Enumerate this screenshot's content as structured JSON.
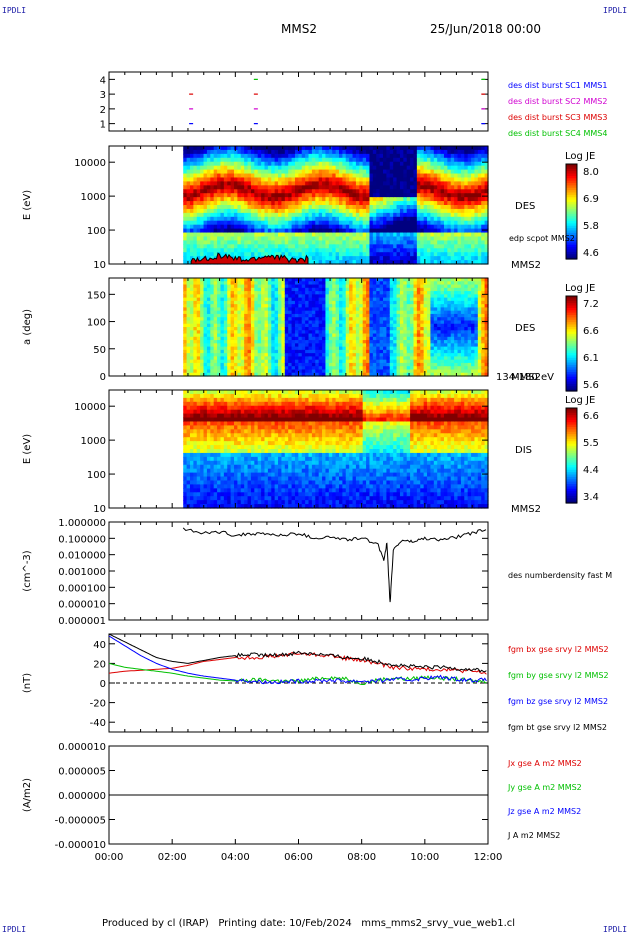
{
  "corners": {
    "tl": "IPDLI",
    "tr": "IPDLI",
    "bl": "IPDLI",
    "br": "IPDLI"
  },
  "header": {
    "title": "MMS2",
    "date": "25/Jun/2018 00:00"
  },
  "footer": {
    "text": "Produced by cl (IRAP)   Printing date: 10/Feb/2024   mms_mms2_srvy_vue_web1.cl"
  },
  "colors": {
    "mms1": "#0000ff",
    "mms2": "#d000d0",
    "mms3": "#dd0000",
    "mms4": "#00c000",
    "bx": "#dd0000",
    "by": "#00c000",
    "bz": "#0000ff",
    "bt": "#000000"
  },
  "chart_data": [
    {
      "type": "scatter",
      "panel": "availability",
      "ylim": [
        0.5,
        4.5
      ],
      "yticks": [
        "1",
        "2",
        "3",
        "4"
      ],
      "legend": [
        {
          "name": "des dist burst SC1 MMS1",
          "color": "#0000ff"
        },
        {
          "name": "des dist burst SC2 MMS2",
          "color": "#d000d0"
        },
        {
          "name": "des dist burst SC3 MMS3",
          "color": "#dd0000"
        },
        {
          "name": "des dist burst SC4 MMS4",
          "color": "#00c000"
        }
      ],
      "marks": [
        {
          "t": 2.6,
          "sc": 1
        },
        {
          "t": 2.6,
          "sc": 2
        },
        {
          "t": 2.6,
          "sc": 3
        },
        {
          "t": 4.65,
          "sc": 1
        },
        {
          "t": 4.65,
          "sc": 2
        },
        {
          "t": 4.65,
          "sc": 3
        },
        {
          "t": 4.65,
          "sc": 4
        },
        {
          "t": 11.85,
          "sc": 1
        },
        {
          "t": 11.85,
          "sc": 2
        },
        {
          "t": 11.85,
          "sc": 3
        },
        {
          "t": 11.85,
          "sc": 4
        }
      ]
    },
    {
      "type": "heatmap",
      "panel": "des-energy",
      "ylabel": "E (eV)",
      "yscale": "log",
      "ylim": [
        10,
        30000
      ],
      "yticks": [
        "10",
        "100",
        "1000",
        "10000"
      ],
      "data_start": 2.35,
      "label": "DES",
      "sc_label": "MMS2",
      "overlay_label": "edp scpot MMS2",
      "colorbar": {
        "title": "Log JE",
        "ticks": [
          "8.0",
          "6.9",
          "5.8",
          "4.6"
        ]
      }
    },
    {
      "type": "heatmap",
      "panel": "des-pitch",
      "ylabel": "a (deg)",
      "ylim": [
        0,
        180
      ],
      "yticks": [
        "0",
        "50",
        "100",
        "150"
      ],
      "data_start": 2.35,
      "label": "DES",
      "sc_label": "MMS2",
      "energy_label": "134-180 eV",
      "colorbar": {
        "title": "Log JE",
        "ticks": [
          "7.2",
          "6.6",
          "6.1",
          "5.6"
        ]
      }
    },
    {
      "type": "heatmap",
      "panel": "dis-energy",
      "ylabel": "E (eV)",
      "yscale": "log",
      "ylim": [
        10,
        30000
      ],
      "yticks": [
        "10",
        "100",
        "1000",
        "10000"
      ],
      "data_start": 2.35,
      "label": "DIS",
      "sc_label": "MMS2",
      "colorbar": {
        "title": "Log JE",
        "ticks": [
          "6.6",
          "5.5",
          "4.4",
          "3.4"
        ]
      }
    },
    {
      "type": "line",
      "panel": "density",
      "ylabel": "(cm^-3)",
      "yscale": "log",
      "ylim": [
        1e-06,
        1
      ],
      "yticks": [
        "1.000000",
        "0.100000",
        "0.010000",
        "0.001000",
        "0.000100",
        "0.000010",
        "0.000001"
      ],
      "series": [
        {
          "name": "des numberdensity fast M",
          "color": "#000000",
          "x": [
            2.35,
            3.0,
            3.5,
            4.0,
            4.5,
            5.0,
            5.5,
            6.0,
            6.5,
            7.0,
            7.5,
            8.0,
            8.5,
            8.7,
            8.8,
            8.9,
            9.0,
            9.3,
            9.6,
            10.0,
            10.5,
            11.0,
            11.5,
            12.0
          ],
          "y": [
            0.35,
            0.2,
            0.25,
            0.15,
            0.2,
            0.18,
            0.15,
            0.2,
            0.1,
            0.12,
            0.08,
            0.1,
            0.05,
            0.005,
            0.05,
            1e-05,
            0.02,
            0.08,
            0.06,
            0.1,
            0.08,
            0.12,
            0.2,
            0.4
          ]
        }
      ]
    },
    {
      "type": "line",
      "panel": "magnetic-field",
      "ylabel": "(nT)",
      "ylim": [
        -50,
        50
      ],
      "yticks": [
        "-40",
        "-20",
        "0",
        "20",
        "40"
      ],
      "x": [
        0,
        0.5,
        1,
        1.5,
        2,
        2.5,
        3,
        3.5,
        4,
        4.5,
        5,
        5.5,
        6,
        6.5,
        7,
        7.5,
        8,
        8.5,
        9,
        9.5,
        10,
        10.5,
        11,
        11.5,
        12
      ],
      "series": [
        {
          "name": "fgm bx gse srvy l2 MMS2",
          "color": "#dd0000",
          "values": [
            10,
            12,
            13,
            14,
            15,
            18,
            22,
            24,
            26,
            26,
            27,
            28,
            30,
            29,
            28,
            25,
            23,
            20,
            16,
            15,
            14,
            14,
            13,
            12,
            10
          ]
        },
        {
          "name": "fgm by gse srvy l2 MMS2",
          "color": "#00c000",
          "values": [
            20,
            16,
            14,
            12,
            10,
            7,
            5,
            3,
            2,
            3,
            3,
            2,
            2,
            4,
            6,
            4,
            0,
            3,
            5,
            4,
            6,
            5,
            4,
            2,
            2
          ]
        },
        {
          "name": "fgm bz gse srvy l2 MMS2",
          "color": "#0000ff",
          "values": [
            48,
            38,
            28,
            20,
            14,
            10,
            7,
            5,
            3,
            2,
            1,
            1,
            2,
            2,
            3,
            2,
            2,
            2,
            4,
            3,
            5,
            6,
            4,
            3,
            3
          ]
        },
        {
          "name": "fgm bt gse srvy l2 MMS2",
          "color": "#000000",
          "values": [
            50,
            42,
            34,
            26,
            22,
            20,
            23,
            26,
            28,
            29,
            28,
            29,
            31,
            30,
            28,
            26,
            25,
            22,
            19,
            17,
            16,
            16,
            15,
            14,
            12
          ]
        }
      ]
    },
    {
      "type": "line",
      "panel": "current-density",
      "ylabel": "(A/m2)",
      "ylim": [
        -0.0001,
        0.0001
      ],
      "yticks": [
        "0.000010",
        "0.000005",
        "0.000000",
        "-0.000005",
        "-0.000010"
      ],
      "series": [
        {
          "name": "Jx gse A m2 MMS2",
          "color": "#dd0000",
          "values": [
            0,
            0
          ]
        },
        {
          "name": "Jy gse A m2 MMS2",
          "color": "#00c000",
          "values": [
            0,
            0
          ]
        },
        {
          "name": "Jz gse A m2 MMS2",
          "color": "#0000ff",
          "values": [
            0,
            0
          ]
        },
        {
          "name": "J A m2 MMS2",
          "color": "#000000",
          "values": [
            0,
            0
          ]
        }
      ]
    }
  ],
  "time_axis": {
    "range": [
      0,
      12
    ],
    "ticks": [
      "00:00",
      "02:00",
      "04:00",
      "06:00",
      "08:00",
      "10:00",
      "12:00"
    ]
  }
}
